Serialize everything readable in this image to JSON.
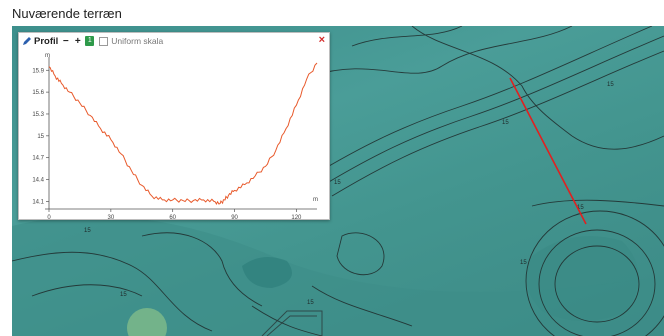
{
  "page": {
    "heading": "Nuværende terræn"
  },
  "panel": {
    "title": "Profil",
    "minus": "−",
    "plus": "+",
    "badge": "1",
    "uniform_label": "Uniform skala",
    "close": "×"
  },
  "map": {
    "contour_labels": [
      "15",
      "15",
      "15",
      "15",
      "15",
      "15",
      "15",
      "15"
    ]
  },
  "chart_data": {
    "type": "line",
    "title": "",
    "xlabel": "m",
    "ylabel": "m",
    "xlim": [
      0,
      130
    ],
    "ylim": [
      14.05,
      16.0
    ],
    "x_ticks": [
      "0",
      "30",
      "60",
      "90",
      "120"
    ],
    "x_tick_values": [
      0,
      30,
      60,
      90,
      120
    ],
    "y_ticks": [
      "15.9",
      "15.6",
      "15.3",
      "15",
      "14.7",
      "14.4",
      "14.1"
    ],
    "y_tick_values": [
      15.9,
      15.6,
      15.3,
      15.0,
      14.7,
      14.4,
      14.1
    ],
    "grid": false,
    "line_color": "#e85a2c",
    "series": [
      {
        "x": [
          0,
          3,
          6,
          10,
          15,
          20,
          25,
          30,
          35,
          40,
          45,
          50,
          55,
          60,
          65,
          70,
          75,
          80,
          83,
          85,
          87,
          90,
          95,
          100,
          105,
          110,
          115,
          120,
          125,
          130
        ],
        "y": [
          15.95,
          15.82,
          15.72,
          15.6,
          15.45,
          15.28,
          15.1,
          14.95,
          14.75,
          14.52,
          14.32,
          14.17,
          14.12,
          14.12,
          14.11,
          14.11,
          14.12,
          14.1,
          14.07,
          14.12,
          14.18,
          14.25,
          14.33,
          14.45,
          14.58,
          14.8,
          15.1,
          15.42,
          15.78,
          16.0
        ]
      }
    ]
  }
}
